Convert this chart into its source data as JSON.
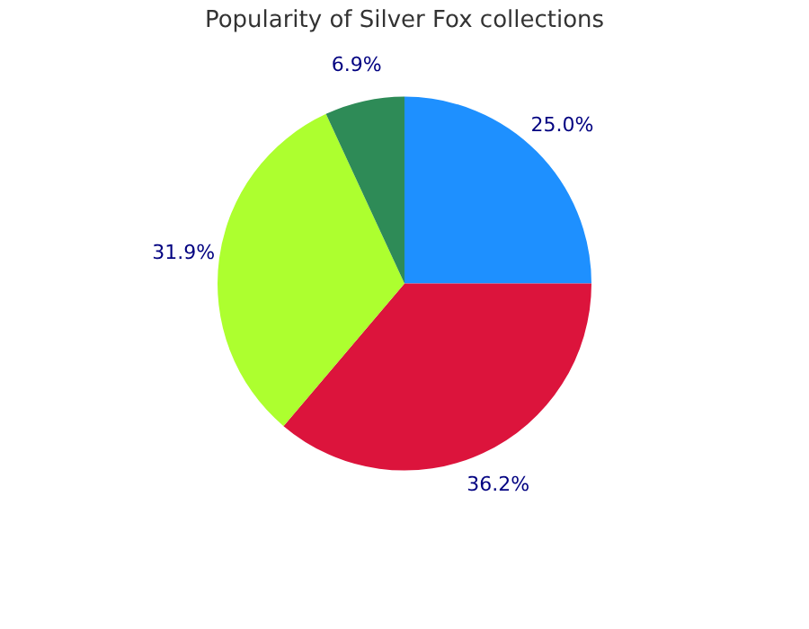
{
  "chart_data": {
    "type": "pie",
    "title": "Popularity of Silver Fox collections",
    "categories": [
      null,
      null,
      null,
      null
    ],
    "values": [
      25.0,
      36.2,
      31.9,
      6.9
    ],
    "colors": [
      "#1e90ff",
      "#dc143c",
      "#adff2f",
      "#2e8b57"
    ],
    "value_labels": [
      "25.0%",
      "36.2%",
      "31.9%",
      "6.9%"
    ],
    "legend": false
  }
}
